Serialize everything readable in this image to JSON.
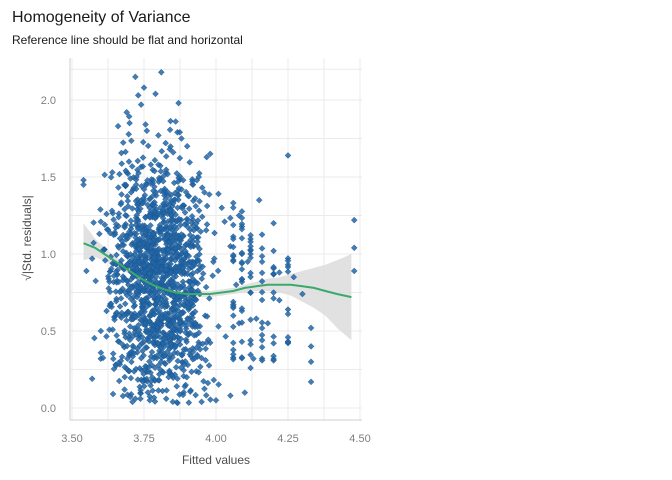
{
  "chart_data": {
    "type": "scatter",
    "title": "Homogeneity of Variance",
    "subtitle": "Reference line should be flat and horizontal",
    "xlabel": "Fitted values",
    "ylabel": "√|Std. residuals|",
    "xlim": [
      3.5,
      4.5
    ],
    "ylim": [
      0.0,
      2.2
    ],
    "x_ticks": [
      "3.50",
      "3.75",
      "4.00",
      "4.25",
      "4.50"
    ],
    "y_ticks": [
      "0.0",
      "0.5",
      "1.0",
      "1.5",
      "2.0"
    ],
    "grid": true,
    "colors": {
      "points": "#2166a8",
      "smooth": "#3aaa6b",
      "band": "#dcdcdc",
      "grid": "#ebebeb"
    },
    "smooth_line": {
      "x": [
        3.54,
        3.58,
        3.62,
        3.66,
        3.7,
        3.74,
        3.78,
        3.82,
        3.86,
        3.9,
        3.94,
        3.98,
        4.02,
        4.06,
        4.1,
        4.14,
        4.18,
        4.22,
        4.26,
        4.3,
        4.34,
        4.38,
        4.42,
        4.47
      ],
      "y": [
        1.07,
        1.04,
        0.99,
        0.94,
        0.89,
        0.84,
        0.8,
        0.77,
        0.75,
        0.74,
        0.74,
        0.74,
        0.75,
        0.76,
        0.78,
        0.79,
        0.8,
        0.8,
        0.8,
        0.79,
        0.78,
        0.76,
        0.74,
        0.72
      ],
      "lower": [
        0.96,
        0.98,
        0.95,
        0.91,
        0.87,
        0.82,
        0.78,
        0.75,
        0.73,
        0.72,
        0.72,
        0.72,
        0.73,
        0.74,
        0.75,
        0.76,
        0.76,
        0.75,
        0.73,
        0.69,
        0.65,
        0.6,
        0.52,
        0.44
      ],
      "upper": [
        1.2,
        1.1,
        1.03,
        0.97,
        0.91,
        0.86,
        0.82,
        0.79,
        0.77,
        0.76,
        0.76,
        0.76,
        0.77,
        0.78,
        0.8,
        0.82,
        0.84,
        0.85,
        0.87,
        0.89,
        0.91,
        0.93,
        0.96,
        1.0
      ]
    },
    "points": [
      [
        3.72,
        2.15
      ],
      [
        3.81,
        2.18
      ],
      [
        3.75,
        2.08
      ],
      [
        3.87,
        1.98
      ],
      [
        3.73,
        2.03
      ],
      [
        3.79,
        2.04
      ],
      [
        3.64,
        1.53
      ],
      [
        3.66,
        1.83
      ],
      [
        3.7,
        1.85
      ],
      [
        3.76,
        1.8
      ],
      [
        3.88,
        1.75
      ],
      [
        3.9,
        1.7
      ],
      [
        3.94,
        1.5
      ],
      [
        3.96,
        1.4
      ],
      [
        4.02,
        1.3
      ],
      [
        4.08,
        1.25
      ],
      [
        4.15,
        1.35
      ],
      [
        4.2,
        1.2
      ],
      [
        4.25,
        1.64
      ],
      [
        4.25,
        0.93
      ],
      [
        4.3,
        0.74
      ],
      [
        4.33,
        0.52
      ],
      [
        4.33,
        0.4
      ],
      [
        4.33,
        0.3
      ],
      [
        4.33,
        0.17
      ],
      [
        4.48,
        1.22
      ],
      [
        4.48,
        1.04
      ],
      [
        4.48,
        0.89
      ],
      [
        4.27,
        0.85
      ],
      [
        4.22,
        0.7
      ],
      [
        4.18,
        0.55
      ],
      [
        4.14,
        0.58
      ],
      [
        4.16,
        0.44
      ],
      [
        4.13,
        0.32
      ],
      [
        4.12,
        0.26
      ],
      [
        4.09,
        0.43
      ],
      [
        3.54,
        1.48
      ],
      [
        3.54,
        1.45
      ],
      [
        3.55,
        0.89
      ],
      [
        3.57,
        0.97
      ],
      [
        3.57,
        0.19
      ],
      [
        3.6,
        0.32
      ],
      [
        3.6,
        0.5
      ],
      [
        3.62,
        0.63
      ],
      [
        3.63,
        0.82
      ],
      [
        3.6,
        1.21
      ],
      [
        3.62,
        1.26
      ],
      [
        3.71,
        0.04
      ],
      [
        3.72,
        0.06
      ],
      [
        3.77,
        0.05
      ],
      [
        3.85,
        0.04
      ],
      [
        3.95,
        0.04
      ],
      [
        4.0,
        0.05
      ],
      [
        4.05,
        0.08
      ],
      [
        4.1,
        0.1
      ],
      [
        3.8,
        1.58
      ],
      [
        3.92,
        1.45
      ],
      [
        4.03,
        1.21
      ],
      [
        4.05,
        1.05
      ],
      [
        4.09,
        1.0
      ],
      [
        4.11,
        0.95
      ],
      [
        4.07,
        0.8
      ],
      [
        4.06,
        0.65
      ],
      [
        4.08,
        0.55
      ],
      [
        4.2,
        1.02
      ],
      [
        4.22,
        0.88
      ],
      [
        3.69,
        1.92
      ],
      [
        3.74,
        1.97
      ],
      [
        3.86,
        1.86
      ],
      [
        3.98,
        1.65
      ]
    ]
  }
}
